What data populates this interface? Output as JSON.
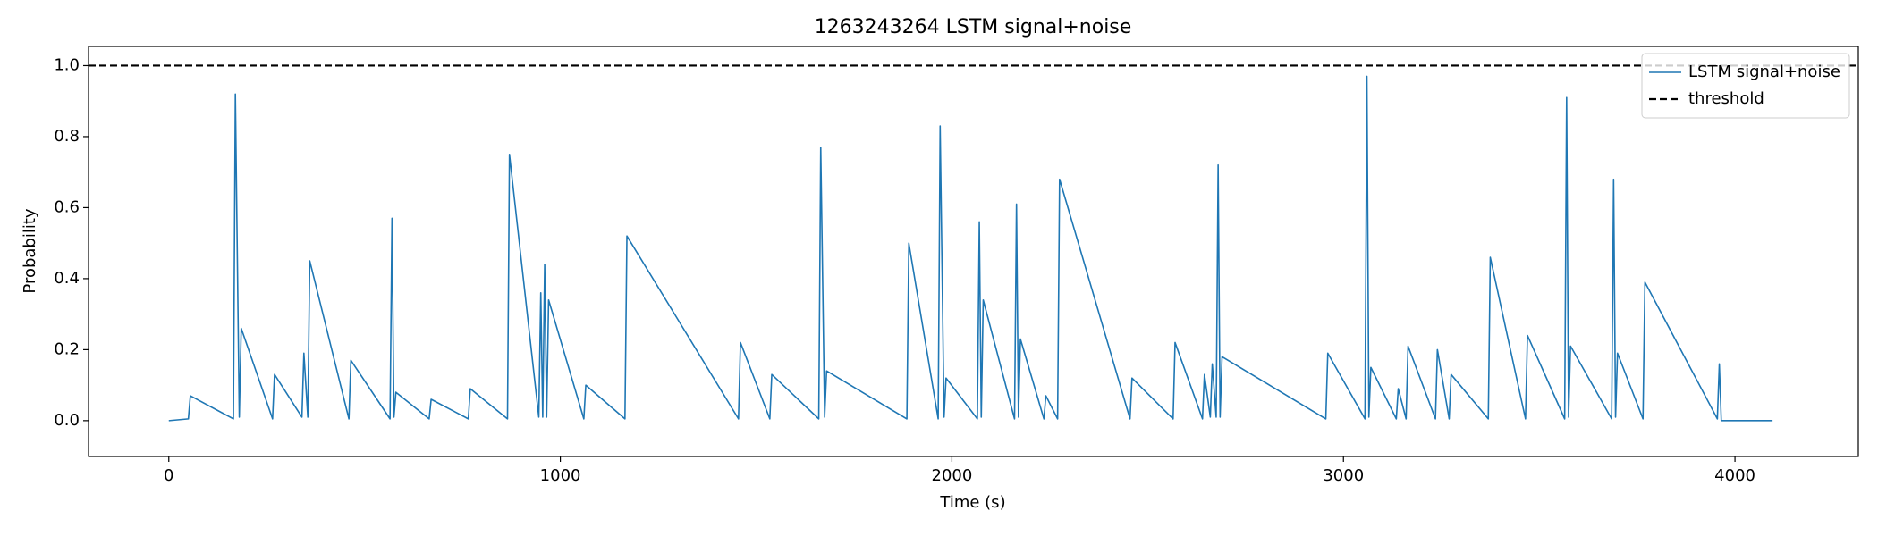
{
  "chart_data": {
    "type": "line",
    "title": "1263243264 LSTM signal+noise",
    "x_label": "Time (s)",
    "y_label": "Probability",
    "xlim": [
      -205,
      4315
    ],
    "ylim": [
      -0.101,
      1.054
    ],
    "xticks": [
      0,
      1000,
      2000,
      3000,
      4000
    ],
    "yticks": [
      {
        "value": 0,
        "label": "0.0"
      },
      {
        "value": 0.2,
        "label": "0.2"
      },
      {
        "value": 0.4,
        "label": "0.4"
      },
      {
        "value": 0.6,
        "label": "0.6"
      },
      {
        "value": 0.8,
        "label": "0.8"
      },
      {
        "value": 1,
        "label": "1.0"
      }
    ],
    "grid": false,
    "legend": "upper right",
    "series": [
      {
        "name": "LSTM signal+noise",
        "color": "#1f77b4",
        "x": [
          0,
          50,
          55,
          165,
          170,
          180,
          185,
          265,
          270,
          340,
          345,
          355,
          360,
          460,
          465,
          565,
          570,
          575,
          580,
          665,
          670,
          765,
          770,
          865,
          870,
          945,
          950,
          955,
          960,
          965,
          970,
          1060,
          1065,
          1165,
          1170,
          1455,
          1460,
          1535,
          1540,
          1660,
          1665,
          1675,
          1680,
          1885,
          1890,
          1965,
          1970,
          1980,
          1985,
          2065,
          2070,
          2075,
          2080,
          2160,
          2165,
          2170,
          2175,
          2235,
          2240,
          2270,
          2275,
          2455,
          2460,
          2565,
          2570,
          2640,
          2645,
          2660,
          2665,
          2675,
          2680,
          2685,
          2690,
          2955,
          2960,
          3055,
          3060,
          3065,
          3070,
          3135,
          3140,
          3160,
          3165,
          3235,
          3240,
          3270,
          3275,
          3370,
          3375,
          3465,
          3470,
          3565,
          3570,
          3575,
          3580,
          3685,
          3690,
          3695,
          3700,
          3765,
          3770,
          3955,
          3960,
          3965,
          4096
        ],
        "values": [
          0,
          0.005,
          0.07,
          0.005,
          0.92,
          0.01,
          0.26,
          0.005,
          0.13,
          0.01,
          0.19,
          0.01,
          0.45,
          0.005,
          0.17,
          0.005,
          0.57,
          0.01,
          0.08,
          0.005,
          0.06,
          0.005,
          0.09,
          0.005,
          0.75,
          0.01,
          0.36,
          0.01,
          0.44,
          0.01,
          0.34,
          0.005,
          0.1,
          0.005,
          0.52,
          0.005,
          0.22,
          0.005,
          0.13,
          0.005,
          0.77,
          0.01,
          0.14,
          0.005,
          0.5,
          0.005,
          0.83,
          0.01,
          0.12,
          0.005,
          0.56,
          0.01,
          0.34,
          0.005,
          0.61,
          0.01,
          0.23,
          0.005,
          0.07,
          0.005,
          0.68,
          0.005,
          0.12,
          0.005,
          0.22,
          0.005,
          0.13,
          0.01,
          0.16,
          0.01,
          0.72,
          0.01,
          0.18,
          0.005,
          0.19,
          0.005,
          0.97,
          0.01,
          0.15,
          0.005,
          0.09,
          0.005,
          0.21,
          0.005,
          0.2,
          0.005,
          0.13,
          0.005,
          0.46,
          0.005,
          0.24,
          0.005,
          0.91,
          0.01,
          0.21,
          0.005,
          0.68,
          0.01,
          0.19,
          0.005,
          0.39,
          0.005,
          0.16,
          0,
          0
        ]
      }
    ],
    "threshold": {
      "name": "threshold",
      "value": 1,
      "color": "#000000",
      "style": "dashed"
    }
  }
}
